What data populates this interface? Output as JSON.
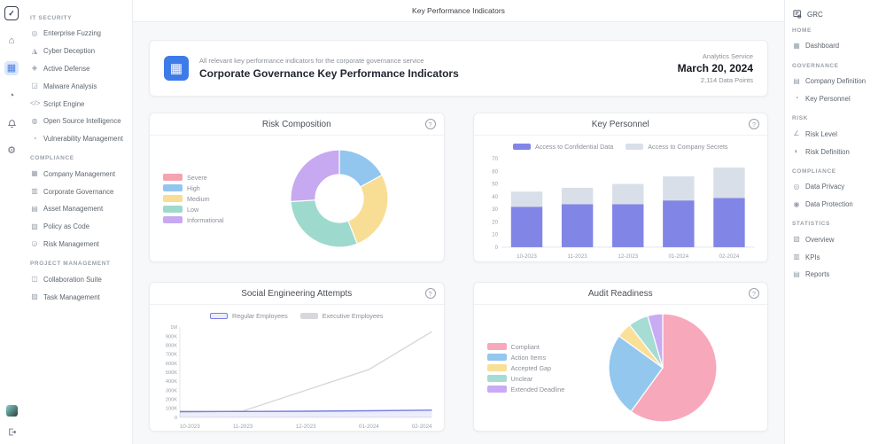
{
  "top_bar": {
    "title": "Key Performance Indicators"
  },
  "icon_rail": {
    "items": [
      "logo-icon",
      "home-icon",
      "apps-grid-icon",
      "pie-chart-icon",
      "notifications-bell-icon",
      "settings-gear-icon",
      "avatar",
      "logout-icon"
    ],
    "active": "apps-grid-icon"
  },
  "left_sidebar": {
    "sections": [
      {
        "label": "IT SECURITY",
        "items": [
          {
            "label": "Enterprise Fuzzing",
            "icon": "target-icon",
            "glyph": "◎"
          },
          {
            "label": "Cyber Deception",
            "icon": "deception-icon",
            "glyph": "◮"
          },
          {
            "label": "Active Defense",
            "icon": "shield-icon",
            "glyph": "◈"
          },
          {
            "label": "Malware Analysis",
            "icon": "bug-icon",
            "glyph": "◲"
          },
          {
            "label": "Script Engine",
            "icon": "code-icon",
            "glyph": "</>"
          },
          {
            "label": "Open Source Intelligence",
            "icon": "search-icon",
            "glyph": "◍"
          },
          {
            "label": "Vulnerability Management",
            "icon": "vulnerability-icon",
            "glyph": "◔"
          }
        ]
      },
      {
        "label": "COMPLIANCE",
        "items": [
          {
            "label": "Company Management",
            "icon": "building-icon",
            "glyph": "▦"
          },
          {
            "label": "Corporate Governance",
            "icon": "governance-icon",
            "glyph": "▥"
          },
          {
            "label": "Asset Management",
            "icon": "briefcase-icon",
            "glyph": "▤"
          },
          {
            "label": "Policy as Code",
            "icon": "policy-icon",
            "glyph": "▧"
          },
          {
            "label": "Risk Management",
            "icon": "risk-icon",
            "glyph": "◶"
          }
        ]
      },
      {
        "label": "PROJECT MANAGEMENT",
        "items": [
          {
            "label": "Collaboration Suite",
            "icon": "users-icon",
            "glyph": "◫"
          },
          {
            "label": "Task Management",
            "icon": "tasks-icon",
            "glyph": "▨"
          }
        ]
      }
    ]
  },
  "right_sidebar": {
    "brand": "GRC",
    "sections": [
      {
        "label": "HOME",
        "items": [
          {
            "label": "Dashboard",
            "icon": "dashboard-icon",
            "glyph": "▦"
          }
        ]
      },
      {
        "label": "GOVERNANCE",
        "items": [
          {
            "label": "Company Definition",
            "icon": "company-icon",
            "glyph": "▤"
          },
          {
            "label": "Key Personnel",
            "icon": "people-icon",
            "glyph": "◔"
          }
        ]
      },
      {
        "label": "RISK",
        "items": [
          {
            "label": "Risk Level",
            "icon": "risk-level-icon",
            "glyph": "∠"
          },
          {
            "label": "Risk Definition",
            "icon": "risk-definition-icon",
            "glyph": "◐"
          }
        ]
      },
      {
        "label": "COMPLIANCE",
        "items": [
          {
            "label": "Data Privacy",
            "icon": "privacy-icon",
            "glyph": "◎"
          },
          {
            "label": "Data Protection",
            "icon": "eye-icon",
            "glyph": "◉"
          }
        ]
      },
      {
        "label": "STATISTICS",
        "items": [
          {
            "label": "Overview",
            "icon": "overview-icon",
            "glyph": "▧"
          },
          {
            "label": "KPIs",
            "icon": "kpi-icon",
            "glyph": "▥"
          },
          {
            "label": "Reports",
            "icon": "reports-icon",
            "glyph": "▤"
          }
        ]
      }
    ]
  },
  "header_card": {
    "subtitle": "All relevant key performance indicators for the corporate governance service",
    "title": "Corporate Governance Key Performance Indicators",
    "meta_service": "Analytics Service",
    "meta_date": "March 20, 2024",
    "meta_points": "2,114 Data Points"
  },
  "chart_data": [
    {
      "type": "pie",
      "donut": true,
      "title": "Risk Composition",
      "labels": [
        "Severe",
        "High",
        "Medium",
        "Low",
        "Informational"
      ],
      "values": [
        0,
        17,
        27,
        30,
        26
      ],
      "colors": [
        "#f5a3b1",
        "#93c6ee",
        "#f8dd94",
        "#9ed9cd",
        "#c6a9f1"
      ],
      "legend_position": "left"
    },
    {
      "type": "bar",
      "stacked": true,
      "title": "Key Personnel",
      "categories": [
        "10-2023",
        "11-2023",
        "12-2023",
        "01-2024",
        "02-2024"
      ],
      "series": [
        {
          "name": "Access to Confidential Data",
          "values": [
            32,
            34,
            34,
            37,
            39
          ],
          "color": "#8185e6"
        },
        {
          "name": "Access to Company Secrets",
          "values": [
            12,
            13,
            16,
            19,
            24
          ],
          "color": "#d9dfe8"
        }
      ],
      "ylim": [
        0,
        70
      ],
      "yticks": [
        "0",
        "10",
        "20",
        "30",
        "40",
        "50",
        "60",
        "70"
      ],
      "legend_position": "top",
      "grid": false
    },
    {
      "type": "line",
      "title": "Social Engineering Attempts",
      "categories": [
        "10-2023",
        "11-2023",
        "12-2023",
        "01-2024",
        "02-2024"
      ],
      "series": [
        {
          "name": "Regular Employees",
          "values": [
            65000,
            65000,
            68000,
            73000,
            80000
          ],
          "color": "#797ee0",
          "fill": true
        },
        {
          "name": "Executive Employees",
          "values": [
            55000,
            70000,
            300000,
            530000,
            950000
          ],
          "color": "#d6d8dc",
          "fill": false
        }
      ],
      "ylim": [
        0,
        1000000
      ],
      "yticks": [
        "0",
        "100K",
        "200K",
        "300K",
        "400K",
        "500K",
        "600K",
        "700K",
        "800K",
        "900K",
        "1M"
      ],
      "legend_position": "top",
      "grid": false
    },
    {
      "type": "pie",
      "donut": false,
      "title": "Audit Readiness",
      "labels": [
        "Compliant",
        "Action Items",
        "Accepted Gap",
        "Unclear",
        "Extended Deadline"
      ],
      "values": [
        60,
        25,
        4.5,
        6,
        4.5
      ],
      "colors": [
        "#f8a8bb",
        "#93c7ee",
        "#fadf97",
        "#a5dcd3",
        "#c9abf4"
      ],
      "legend_position": "left"
    }
  ]
}
